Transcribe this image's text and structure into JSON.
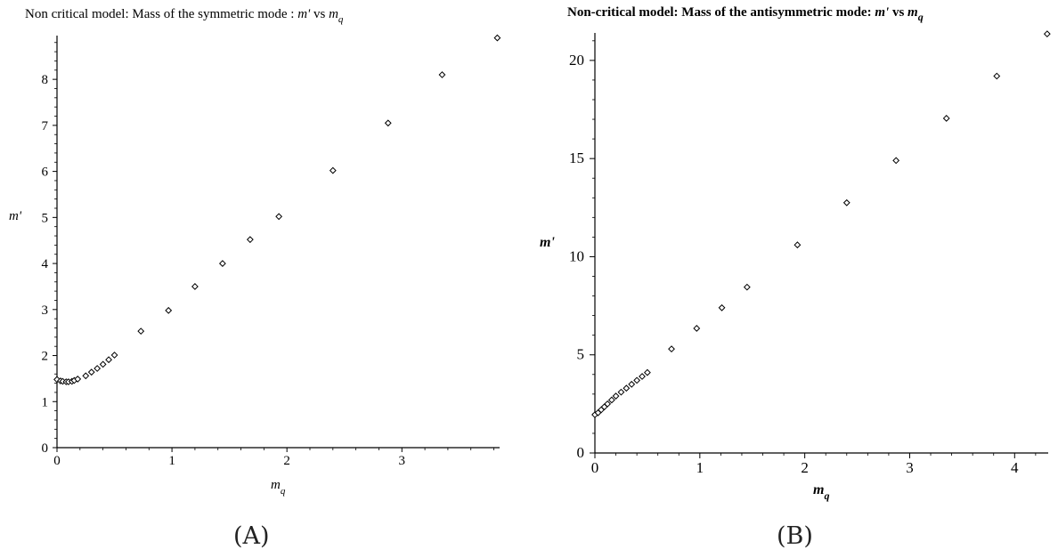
{
  "chart_data": [
    {
      "type": "scatter",
      "title": {
        "prefix": "Non critical model:  Mass of the symmetric mode : ",
        "y_symbol": "m'",
        "vs": "  vs  ",
        "x_main": "m",
        "x_sub": "q"
      },
      "ylabel": "m'",
      "xlabel": {
        "main": "m",
        "sub": "q"
      },
      "caption": "(A)",
      "xlim": [
        0,
        3.85
      ],
      "ylim": [
        0,
        8.95
      ],
      "xticks": [
        0,
        1,
        2,
        3
      ],
      "yticks": [
        0,
        1,
        2,
        3,
        4,
        5,
        6,
        7,
        8
      ],
      "marker": "diamond",
      "points": [
        [
          0.0,
          1.48
        ],
        [
          0.03,
          1.45
        ],
        [
          0.05,
          1.44
        ],
        [
          0.08,
          1.43
        ],
        [
          0.1,
          1.43
        ],
        [
          0.13,
          1.44
        ],
        [
          0.15,
          1.46
        ],
        [
          0.18,
          1.49
        ],
        [
          0.25,
          1.56
        ],
        [
          0.3,
          1.64
        ],
        [
          0.35,
          1.72
        ],
        [
          0.4,
          1.81
        ],
        [
          0.45,
          1.91
        ],
        [
          0.5,
          2.01
        ],
        [
          0.73,
          2.53
        ],
        [
          0.97,
          2.98
        ],
        [
          1.2,
          3.5
        ],
        [
          1.44,
          4.0
        ],
        [
          1.68,
          4.52
        ],
        [
          1.93,
          5.02
        ],
        [
          2.4,
          6.02
        ],
        [
          2.88,
          7.05
        ],
        [
          3.35,
          8.1
        ],
        [
          3.83,
          8.9
        ]
      ]
    },
    {
      "type": "scatter",
      "title": {
        "prefix": "Non-critical model: Mass of the antisymmetric mode:  ",
        "y_symbol": "m'",
        "vs": "  vs  ",
        "x_main": "m",
        "x_sub": "q"
      },
      "ylabel": "m'",
      "xlabel": {
        "main": "m",
        "sub": "q"
      },
      "caption": "(B)",
      "xlim": [
        0,
        4.32
      ],
      "ylim": [
        0,
        21.4
      ],
      "xticks": [
        0,
        1,
        2,
        3,
        4
      ],
      "yticks": [
        0,
        5,
        10,
        15,
        20
      ],
      "marker": "diamond",
      "points": [
        [
          0.0,
          1.95
        ],
        [
          0.03,
          2.05
        ],
        [
          0.06,
          2.2
        ],
        [
          0.09,
          2.35
        ],
        [
          0.12,
          2.5
        ],
        [
          0.16,
          2.7
        ],
        [
          0.2,
          2.9
        ],
        [
          0.25,
          3.1
        ],
        [
          0.3,
          3.3
        ],
        [
          0.35,
          3.5
        ],
        [
          0.4,
          3.7
        ],
        [
          0.45,
          3.9
        ],
        [
          0.5,
          4.1
        ],
        [
          0.73,
          5.3
        ],
        [
          0.97,
          6.35
        ],
        [
          1.21,
          7.4
        ],
        [
          1.45,
          8.45
        ],
        [
          1.93,
          10.6
        ],
        [
          2.4,
          12.75
        ],
        [
          2.87,
          14.9
        ],
        [
          3.35,
          17.05
        ],
        [
          3.83,
          19.2
        ],
        [
          4.31,
          21.35
        ]
      ]
    }
  ]
}
